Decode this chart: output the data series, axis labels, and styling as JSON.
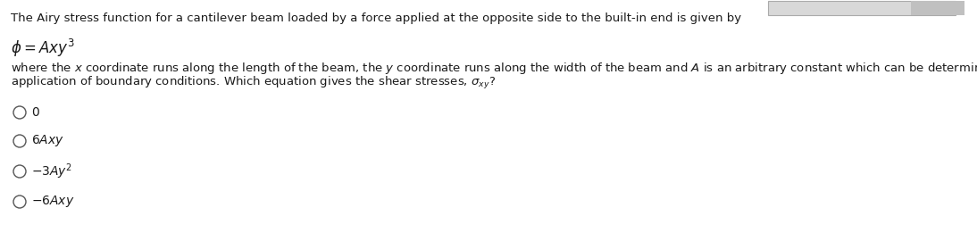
{
  "background_color": "#ffffff",
  "top_text": "The Airy stress function for a cantilever beam loaded by a force applied at the opposite side to the built-in end is given by",
  "formula": "$\\phi = Axy^3$",
  "body_text_line1": "where the $x$ coordinate runs along the length of the beam, the $y$ coordinate runs along the width of the beam and $A$ is an arbitrary constant which can be determined through",
  "body_text_line2": "application of boundary conditions. Which equation gives the shear stresses, $\\sigma_{xy}$?",
  "options": [
    "0",
    "$6Axy$",
    "$-3Ay^2$",
    "$-6Axy$"
  ],
  "font_size_main": 9.5,
  "font_size_formula": 12,
  "text_color": "#1a1a1a",
  "circle_color": "#555555",
  "box_color": "#d8d8d8",
  "box_border": "#aaaaaa"
}
